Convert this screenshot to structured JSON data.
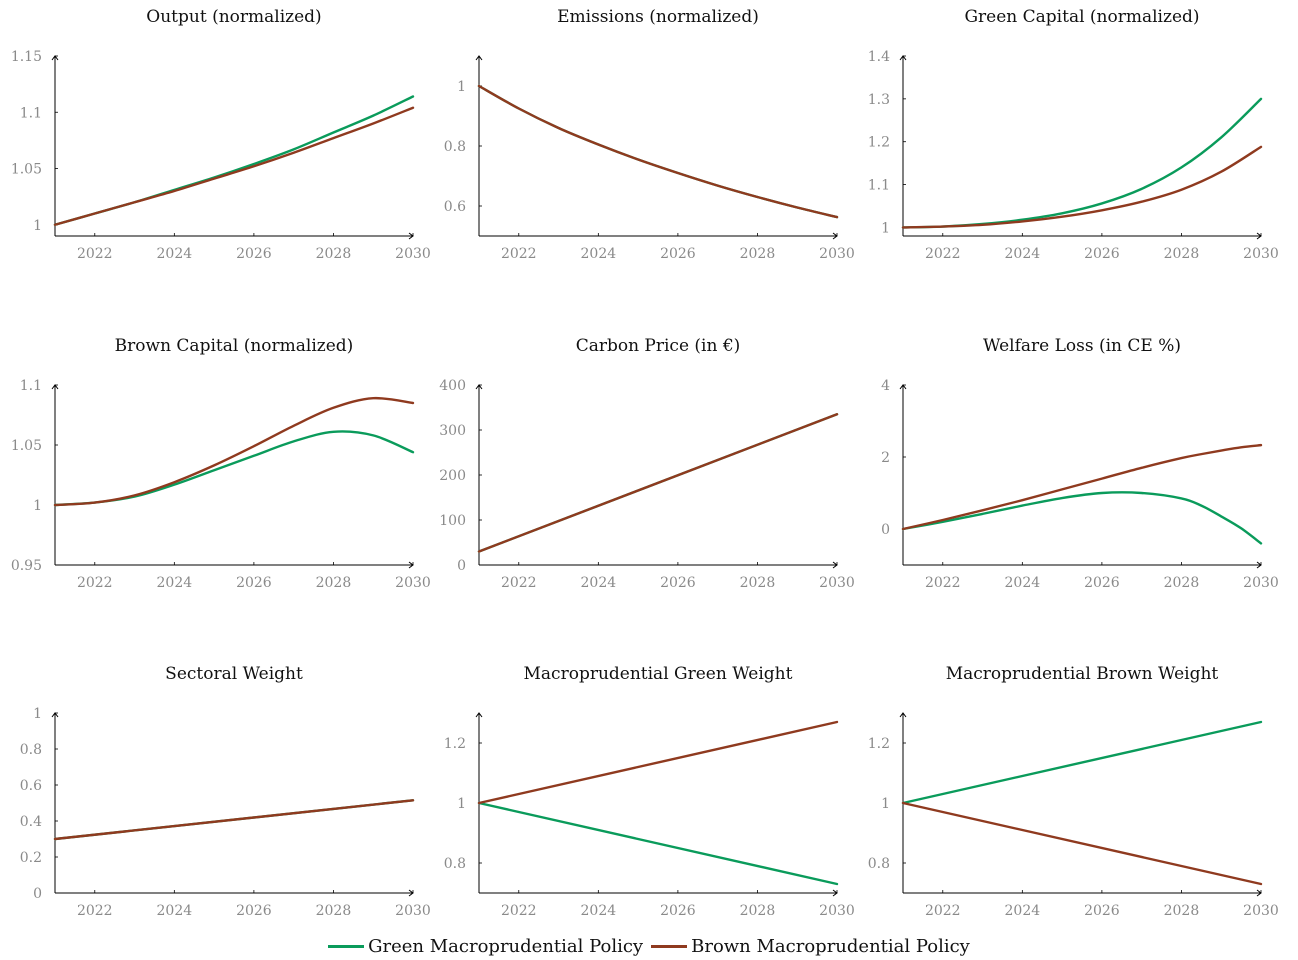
{
  "colors": {
    "green": "#0a9b5b",
    "brown": "#8f3a1f"
  },
  "legend": [
    {
      "label": "Green Macroprudential Policy",
      "color": "#0a9b5b"
    },
    {
      "label": "Brown Macroprudential Policy",
      "color": "#8f3a1f"
    }
  ],
  "chart_data": [
    {
      "type": "line",
      "title": "Output (normalized)",
      "xlim": [
        2021,
        2030
      ],
      "ylim": [
        0.99,
        1.15
      ],
      "xticks": [
        2022,
        2024,
        2026,
        2028,
        2030
      ],
      "yticks": [
        1,
        1.05,
        1.1,
        1.15
      ],
      "yticklabels": [
        "1",
        "1.05",
        "1.1",
        "1.15"
      ],
      "x": [
        2021,
        2022,
        2023,
        2024,
        2025,
        2026,
        2027,
        2028,
        2029,
        2030
      ],
      "series": [
        {
          "color": "#0a9b5b",
          "values": [
            1.0,
            1.01,
            1.02,
            1.031,
            1.042,
            1.054,
            1.067,
            1.082,
            1.097,
            1.114
          ]
        },
        {
          "color": "#8f3a1f",
          "values": [
            1.0,
            1.01,
            1.02,
            1.03,
            1.041,
            1.052,
            1.064,
            1.077,
            1.09,
            1.104
          ]
        }
      ]
    },
    {
      "type": "line",
      "title": "Emissions (normalized)",
      "xlim": [
        2021,
        2030
      ],
      "ylim": [
        0.5,
        1.1
      ],
      "xticks": [
        2022,
        2024,
        2026,
        2028,
        2030
      ],
      "yticks": [
        0.6,
        0.8,
        1
      ],
      "yticklabels": [
        "0.6",
        "0.8",
        "1"
      ],
      "x": [
        2021,
        2022,
        2023,
        2024,
        2025,
        2026,
        2027,
        2028,
        2029,
        2030
      ],
      "series": [
        {
          "color": "#0a9b5b",
          "values": [
            1.0,
            0.925,
            0.86,
            0.805,
            0.755,
            0.71,
            0.668,
            0.63,
            0.595,
            0.563
          ]
        },
        {
          "color": "#8f3a1f",
          "values": [
            1.0,
            0.925,
            0.86,
            0.805,
            0.755,
            0.71,
            0.668,
            0.63,
            0.595,
            0.563
          ]
        }
      ]
    },
    {
      "type": "line",
      "title": "Green Capital (normalized)",
      "xlim": [
        2021,
        2030
      ],
      "ylim": [
        0.98,
        1.4
      ],
      "xticks": [
        2022,
        2024,
        2026,
        2028,
        2030
      ],
      "yticks": [
        1,
        1.1,
        1.2,
        1.3,
        1.4
      ],
      "yticklabels": [
        "1",
        "1.1",
        "1.2",
        "1.3",
        "1.4"
      ],
      "x": [
        2021,
        2022,
        2023,
        2024,
        2025,
        2026,
        2027,
        2028,
        2029,
        2030
      ],
      "series": [
        {
          "color": "#0a9b5b",
          "values": [
            1.0,
            1.002,
            1.008,
            1.018,
            1.033,
            1.056,
            1.09,
            1.14,
            1.21,
            1.3
          ]
        },
        {
          "color": "#8f3a1f",
          "values": [
            1.0,
            1.002,
            1.006,
            1.014,
            1.025,
            1.04,
            1.06,
            1.088,
            1.13,
            1.188
          ]
        }
      ]
    },
    {
      "type": "line",
      "title": "Brown Capital (normalized)",
      "xlim": [
        2021,
        2030
      ],
      "ylim": [
        0.95,
        1.1
      ],
      "xticks": [
        2022,
        2024,
        2026,
        2028,
        2030
      ],
      "yticks": [
        0.95,
        1,
        1.05,
        1.1
      ],
      "yticklabels": [
        "0.95",
        "1",
        "1.05",
        "1.1"
      ],
      "x": [
        2021,
        2022,
        2023,
        2024,
        2025,
        2026,
        2027,
        2028,
        2029,
        2030
      ],
      "series": [
        {
          "color": "#0a9b5b",
          "values": [
            1.0,
            1.002,
            1.007,
            1.017,
            1.029,
            1.041,
            1.053,
            1.061,
            1.058,
            1.044
          ]
        },
        {
          "color": "#8f3a1f",
          "values": [
            1.0,
            1.002,
            1.008,
            1.019,
            1.033,
            1.049,
            1.066,
            1.081,
            1.089,
            1.085
          ]
        }
      ]
    },
    {
      "type": "line",
      "title": "Carbon Price (in €)",
      "xlim": [
        2021,
        2030
      ],
      "ylim": [
        0,
        400
      ],
      "xticks": [
        2022,
        2024,
        2026,
        2028,
        2030
      ],
      "yticks": [
        0,
        100,
        200,
        300,
        400
      ],
      "yticklabels": [
        "0",
        "100",
        "200",
        "300",
        "400"
      ],
      "x": [
        2021,
        2030
      ],
      "series": [
        {
          "color": "#0a9b5b",
          "values": [
            30,
            335
          ]
        },
        {
          "color": "#8f3a1f",
          "values": [
            30,
            335
          ]
        }
      ]
    },
    {
      "type": "line",
      "title": "Welfare Loss (in CE %)",
      "xlim": [
        2021,
        2030
      ],
      "ylim": [
        -1,
        4
      ],
      "xticks": [
        2022,
        2024,
        2026,
        2028,
        2030
      ],
      "yticks": [
        0,
        2,
        4
      ],
      "yticklabels": [
        "0",
        "2",
        "4"
      ],
      "x": [
        2021,
        2022,
        2023,
        2024,
        2025,
        2026,
        2027,
        2028,
        2028.5,
        2029,
        2029.5,
        2030
      ],
      "series": [
        {
          "color": "#0a9b5b",
          "values": [
            0.0,
            0.2,
            0.42,
            0.65,
            0.86,
            1.0,
            1.0,
            0.85,
            0.65,
            0.35,
            0.02,
            -0.4
          ]
        },
        {
          "color": "#8f3a1f",
          "values": [
            0.0,
            0.25,
            0.52,
            0.8,
            1.1,
            1.4,
            1.7,
            1.97,
            2.08,
            2.18,
            2.27,
            2.33
          ]
        }
      ]
    },
    {
      "type": "line",
      "title": "Sectoral Weight",
      "xlim": [
        2021,
        2030
      ],
      "ylim": [
        0,
        1
      ],
      "xticks": [
        2022,
        2024,
        2026,
        2028,
        2030
      ],
      "yticks": [
        0,
        0.2,
        0.4,
        0.6,
        0.8,
        1
      ],
      "yticklabels": [
        "0",
        "0.2",
        "0.4",
        "0.6",
        "0.8",
        "1"
      ],
      "x": [
        2021,
        2030
      ],
      "series": [
        {
          "color": "#0a9b5b",
          "values": [
            0.3,
            0.515
          ]
        },
        {
          "color": "#8f3a1f",
          "values": [
            0.3,
            0.515
          ]
        }
      ]
    },
    {
      "type": "line",
      "title": "Macroprudential Green Weight",
      "xlim": [
        2021,
        2030
      ],
      "ylim": [
        0.7,
        1.3
      ],
      "xticks": [
        2022,
        2024,
        2026,
        2028,
        2030
      ],
      "yticks": [
        0.8,
        1,
        1.2
      ],
      "yticklabels": [
        "0.8",
        "1",
        "1.2"
      ],
      "x": [
        2021,
        2030
      ],
      "series": [
        {
          "color": "#0a9b5b",
          "values": [
            1.0,
            0.73
          ]
        },
        {
          "color": "#8f3a1f",
          "values": [
            1.0,
            1.27
          ]
        }
      ]
    },
    {
      "type": "line",
      "title": "Macroprudential Brown Weight",
      "xlim": [
        2021,
        2030
      ],
      "ylim": [
        0.7,
        1.3
      ],
      "xticks": [
        2022,
        2024,
        2026,
        2028,
        2030
      ],
      "yticks": [
        0.8,
        1,
        1.2
      ],
      "yticklabels": [
        "0.8",
        "1",
        "1.2"
      ],
      "x": [
        2021,
        2030
      ],
      "series": [
        {
          "color": "#0a9b5b",
          "values": [
            1.0,
            1.27
          ]
        },
        {
          "color": "#8f3a1f",
          "values": [
            1.0,
            0.73
          ]
        }
      ]
    }
  ]
}
